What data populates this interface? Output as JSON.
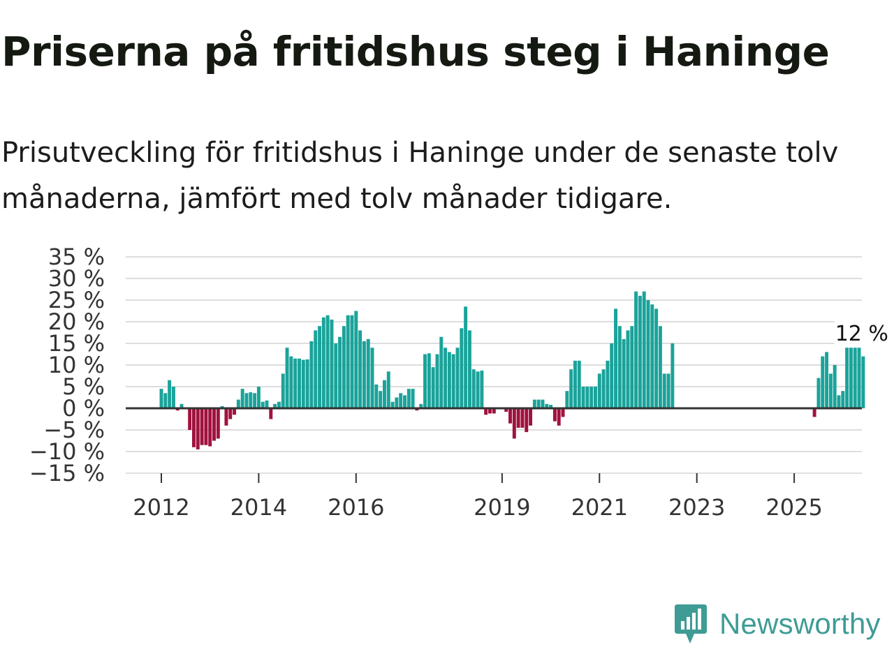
{
  "title": "Priserna på fritidshus steg i Haninge",
  "subtitle": "Prisutveckling för fritidshus i Haninge under de senaste tolv månaderna, jämfört med tolv månader tidigare.",
  "brand": "Newsworthy",
  "colors": {
    "positive": "#1aa39a",
    "negative": "#a0123e",
    "brand": "#3f9c95",
    "grid": "#dddddd",
    "zero": "#333333"
  },
  "chart_data": {
    "type": "bar",
    "xlabel": "",
    "ylabel": "",
    "ylim": [
      -15,
      35
    ],
    "y_ticks": [
      35,
      30,
      25,
      20,
      15,
      10,
      5,
      0,
      -5,
      -10,
      -15
    ],
    "y_tick_labels": [
      "35 %",
      "30 %",
      "25 %",
      "20 %",
      "15 %",
      "10 %",
      "5 %",
      "0 %",
      "−5 %",
      "−10 %",
      "−15 %"
    ],
    "x_ticks": [
      "2012",
      "2014",
      "2016",
      "2019",
      "2021",
      "2023",
      "2025"
    ],
    "grid": true,
    "end_label": "12 %",
    "series": [
      {
        "start": "2012-01",
        "values": [
          4.5,
          3.5,
          6.5,
          5.0,
          -0.5,
          1.0,
          0,
          -5.0,
          -9.0,
          -9.5,
          -8.5,
          -8.5,
          -8.8,
          -7.5,
          -7.0,
          0.5,
          -4.0,
          -2.5,
          -1.5,
          2.0,
          4.5,
          3.5,
          3.7,
          3.5,
          5.0,
          1.5,
          1.8,
          -2.5,
          1.0,
          1.5,
          8.0,
          14.0,
          12.0,
          11.5,
          11.5,
          11.2,
          11.3,
          15.5,
          18.0,
          19.0,
          21.0,
          21.5,
          20.5,
          15.0,
          16.5,
          19.0,
          21.5,
          21.5,
          22.5,
          18.0,
          15.5,
          16.0,
          14.0,
          5.5,
          4.0,
          6.5,
          8.5,
          1.5,
          2.5,
          3.5,
          3.0,
          4.5,
          4.5,
          -0.5,
          1.0,
          12.5,
          12.7,
          9.5,
          12.5,
          16.5,
          14.0,
          13.0,
          12.5,
          14.0,
          18.5,
          23.5,
          18.0,
          9.0,
          8.5,
          8.7,
          -1.5,
          -1.2,
          -1.2,
          0,
          0,
          -0.8,
          -3.5,
          -7.0,
          -4.5,
          -4.5,
          -5.5,
          -4.0,
          2.0,
          2.0,
          2.0,
          1.0,
          0.8,
          -3.0,
          -4.0,
          -2.0,
          4.0,
          9.0,
          11.0,
          11.0,
          5.0,
          5.0,
          5.0,
          5.0,
          8.0,
          9.0,
          11.0,
          15.0,
          23.0,
          19.0,
          16.0,
          18.0,
          19.0,
          27.0,
          26.0,
          27.0,
          25.0,
          24.0,
          23.0,
          19.0,
          8.0,
          8.0,
          15.0,
          null,
          null,
          null,
          null,
          null,
          null,
          null,
          null,
          null,
          null,
          null,
          null,
          null,
          null,
          null,
          null,
          null,
          null,
          null,
          null,
          null,
          null,
          null,
          null,
          null,
          null,
          null,
          null,
          null,
          null,
          null,
          null,
          null,
          null,
          -2.0,
          7.0,
          12.0,
          13.0,
          8.0,
          10.0,
          3.0,
          4.0,
          14.0,
          14.0,
          14.0,
          14.0,
          12.0
        ]
      }
    ]
  }
}
